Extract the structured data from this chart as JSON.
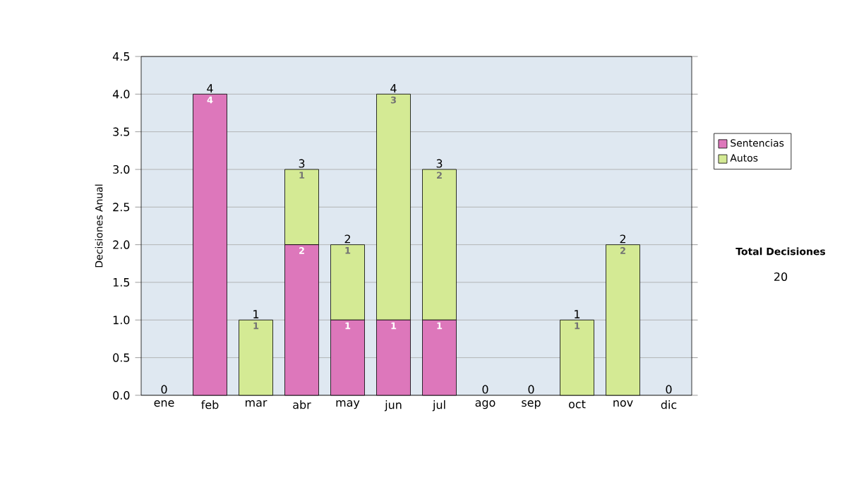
{
  "chart_data": {
    "type": "bar",
    "stacked": true,
    "ylabel": "Decisiones Anual",
    "categories": [
      "ene",
      "feb",
      "mar",
      "abr",
      "may",
      "jun",
      "jul",
      "ago",
      "sep",
      "oct",
      "nov",
      "dic"
    ],
    "series": [
      {
        "name": "Sentencias",
        "color": "#dd77bb",
        "values": [
          0,
          4,
          0,
          2,
          1,
          1,
          1,
          0,
          0,
          0,
          0,
          0
        ],
        "value_labels": [
          null,
          "4",
          null,
          "2",
          "1",
          "1",
          "1",
          null,
          null,
          null,
          null,
          null
        ]
      },
      {
        "name": "Autos",
        "color": "#d4ea94",
        "values": [
          0,
          0,
          1,
          1,
          1,
          3,
          2,
          0,
          0,
          1,
          2,
          0
        ],
        "value_labels": [
          null,
          null,
          "1",
          "1",
          "1",
          "3",
          "2",
          null,
          null,
          "1",
          "2",
          null
        ]
      }
    ],
    "totals": [
      "0",
      "4",
      "1",
      "3",
      "2",
      "4",
      "3",
      "0",
      "0",
      "1",
      "2",
      "0"
    ],
    "ylim": [
      0,
      4.5
    ],
    "yticks": [
      {
        "value": 0,
        "label": "0.0"
      },
      {
        "value": 0.5,
        "label": "0.5"
      },
      {
        "value": 1,
        "label": "1.0"
      },
      {
        "value": 1.5,
        "label": "1.5"
      },
      {
        "value": 2,
        "label": "2.0"
      },
      {
        "value": 2.5,
        "label": "2.5"
      },
      {
        "value": 3,
        "label": "3.0"
      },
      {
        "value": 3.5,
        "label": "3.5"
      },
      {
        "value": 4,
        "label": "4.0"
      },
      {
        "value": 4.5,
        "label": "4.5"
      }
    ],
    "grid": "y",
    "legend": "right",
    "annotations": [
      "Total Decisiones",
      "20"
    ]
  }
}
